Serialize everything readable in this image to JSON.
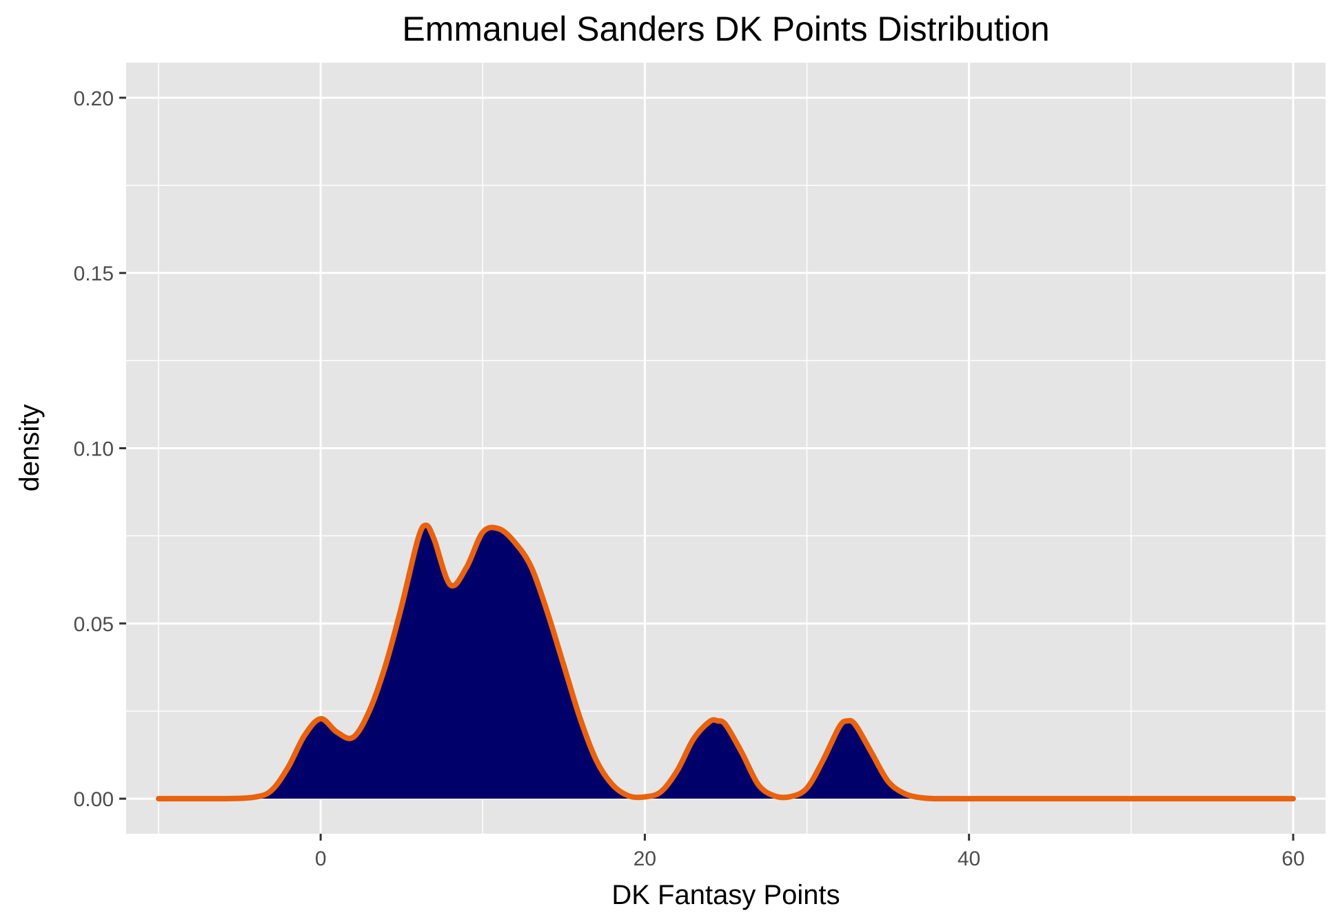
{
  "chart_data": {
    "type": "area",
    "title": "Emmanuel Sanders DK Points Distribution",
    "xlabel": "DK Fantasy Points",
    "ylabel": "density",
    "xlim": [
      -12,
      62
    ],
    "ylim": [
      -0.01,
      0.21
    ],
    "x_ticks": [
      0,
      20,
      40,
      60
    ],
    "y_ticks": [
      0.0,
      0.05,
      0.1,
      0.15,
      0.2
    ],
    "x_tick_labels": [
      "0",
      "20",
      "40",
      "60"
    ],
    "y_tick_labels": [
      "0.00",
      "0.05",
      "0.10",
      "0.15",
      "0.20"
    ],
    "x_minor_grid": [
      -10,
      10,
      30,
      50
    ],
    "y_minor_grid": [
      0.025,
      0.075,
      0.125,
      0.175
    ],
    "grid": true,
    "legend": "none",
    "colors": {
      "panel": "#e5e5e5",
      "grid": "#ffffff",
      "fill": "#00006b",
      "line": "#e8620f"
    },
    "series": [
      {
        "x": [
          -10,
          -6,
          -4,
          -3,
          -2,
          -1,
          0,
          1,
          2,
          3,
          4,
          5,
          6,
          6.5,
          7,
          8,
          9,
          10,
          11,
          12,
          13,
          14,
          15,
          16,
          17,
          18,
          19,
          20,
          21,
          22,
          23,
          24,
          24.5,
          25,
          26,
          27,
          28,
          29,
          30,
          31,
          32,
          32.5,
          33,
          34,
          35,
          36,
          37,
          38,
          40,
          60
        ],
        "y": [
          0,
          0,
          0.0005,
          0.0025,
          0.009,
          0.018,
          0.0228,
          0.019,
          0.0175,
          0.025,
          0.038,
          0.055,
          0.074,
          0.078,
          0.074,
          0.061,
          0.066,
          0.076,
          0.077,
          0.073,
          0.066,
          0.053,
          0.038,
          0.023,
          0.011,
          0.004,
          0.0008,
          0.0005,
          0.002,
          0.008,
          0.017,
          0.022,
          0.0222,
          0.021,
          0.013,
          0.004,
          0.0008,
          0.0006,
          0.003,
          0.011,
          0.0205,
          0.0222,
          0.021,
          0.013,
          0.005,
          0.0015,
          0.0003,
          0,
          0,
          0
        ]
      }
    ]
  }
}
